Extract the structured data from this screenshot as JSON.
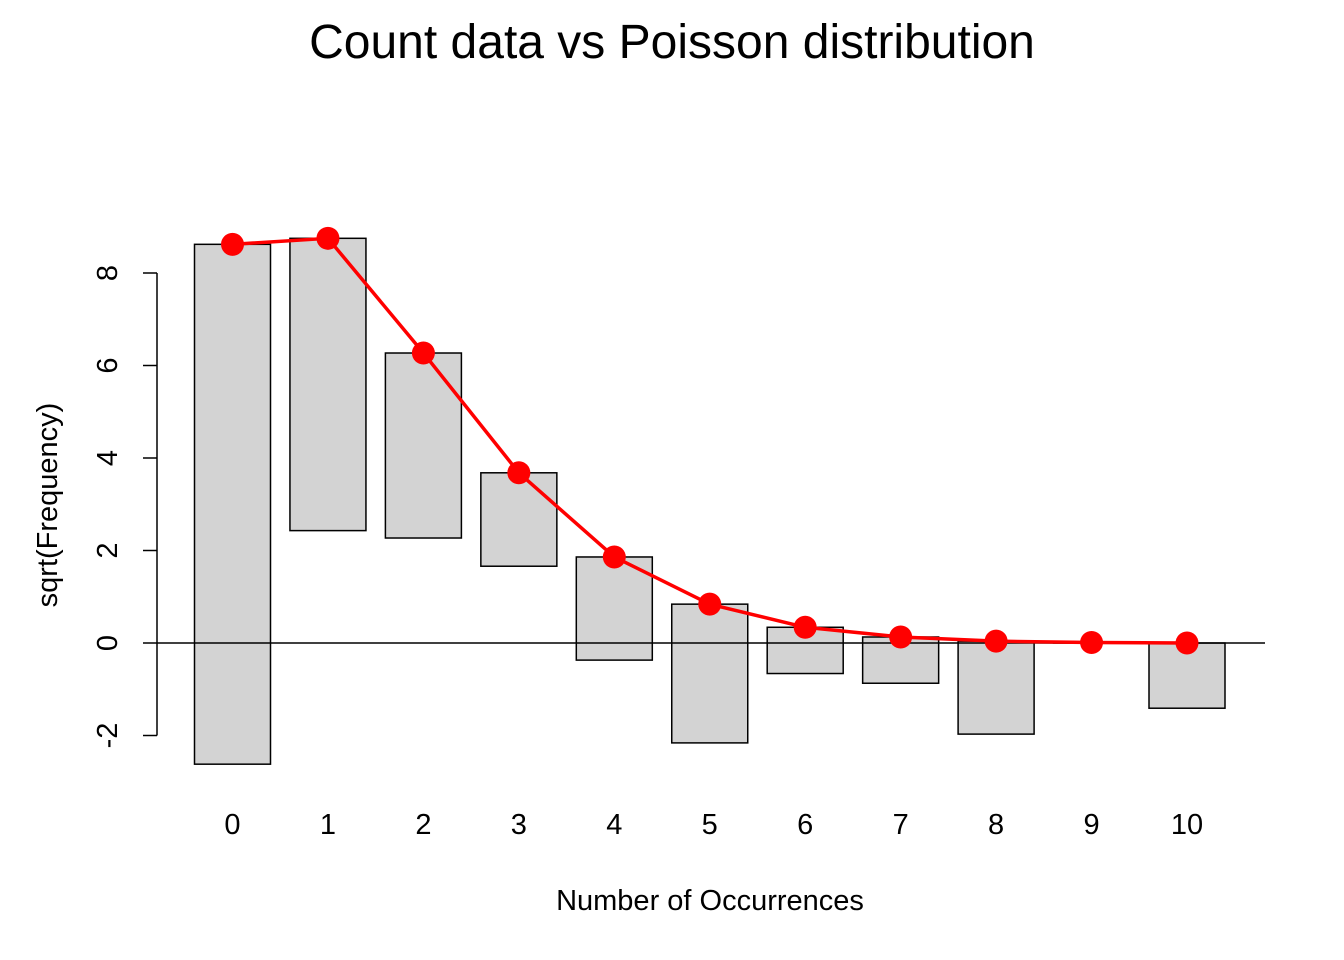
{
  "chart_data": {
    "type": "bar",
    "title": "Count data vs Poisson distribution",
    "xlabel": "Number of Occurrences",
    "ylabel": "sqrt(Frequency)",
    "categories": [
      "0",
      "1",
      "2",
      "3",
      "4",
      "5",
      "6",
      "7",
      "8",
      "9",
      "10"
    ],
    "y_ticks": [
      "-2",
      "0",
      "2",
      "4",
      "6",
      "8"
    ],
    "ylim": [
      -2.6,
      8.75
    ],
    "series": [
      {
        "role": "hanging bars (bottom = expected - observed, top = expected)",
        "bar_top": [
          8.62,
          8.75,
          6.27,
          3.68,
          1.86,
          0.84,
          0.34,
          0.13,
          0.04,
          0.01,
          0.0
        ],
        "bar_bottom": [
          -2.62,
          2.43,
          2.27,
          1.66,
          -0.37,
          -2.16,
          -0.66,
          -0.87,
          -1.97,
          0.0,
          -1.41
        ]
      },
      {
        "role": "expected sqrt(frequency) curve",
        "values": [
          8.62,
          8.75,
          6.27,
          3.68,
          1.86,
          0.84,
          0.34,
          0.13,
          0.04,
          0.01,
          0.0
        ]
      }
    ],
    "reference_line": 0,
    "colors": {
      "bar_fill": "#d3d3d3",
      "bar_stroke": "#000000",
      "curve": "#ff0000"
    },
    "grid": false,
    "legend": "none"
  }
}
